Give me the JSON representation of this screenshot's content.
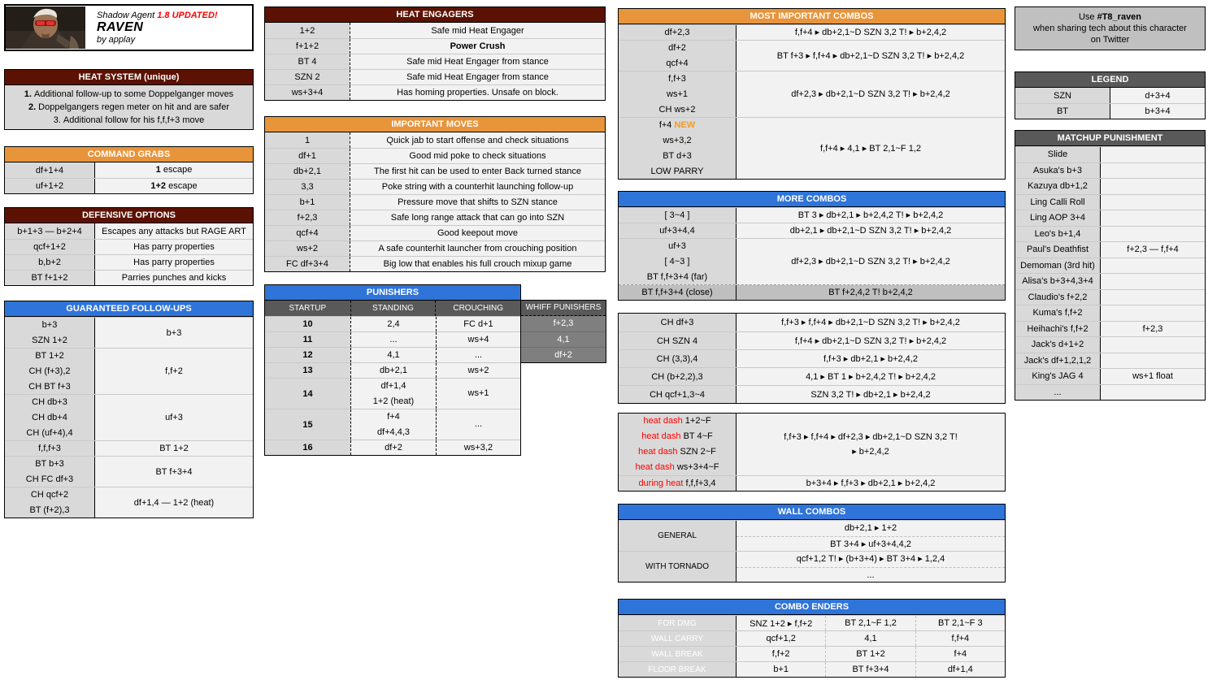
{
  "colors": {
    "maroon": "#5B1202",
    "orange": "#E8943B",
    "blue": "#2E74D9",
    "grey_header": "#595959",
    "label_cell": "#D9D9D9",
    "value_cell": "#F2F2F2",
    "red_text": "#FF0000",
    "new_tag": "#F59B22",
    "dark_row": "#BFBFBF"
  },
  "char_header": {
    "subtitle": "Shadow Agent",
    "version": "1.8 UPDATED!",
    "title": "RAVEN",
    "author": "by applay"
  },
  "heat_system": {
    "title": "HEAT SYSTEM (unique)",
    "lines": [
      {
        "num": "1.",
        "text": "Additional follow-up to some Doppelganger moves",
        "bold": true
      },
      {
        "num": "2.",
        "text": "Doppelgangers regen meter on hit and are safer",
        "bold": true
      },
      {
        "num": "3.",
        "text": "Additional follow for his f,f,f+3 move",
        "bold": false
      }
    ]
  },
  "command_grabs": {
    "title": "COMMAND GRABS",
    "rows": [
      {
        "cmd": "df+1+4",
        "bold": "1",
        "rest": " escape"
      },
      {
        "cmd": "uf+1+2",
        "bold": "1+2",
        "rest": " escape"
      }
    ]
  },
  "defensive_options": {
    "title": "DEFENSIVE OPTIONS",
    "rows": [
      {
        "cmd": "b+1+3 — b+2+4",
        "desc": "Escapes any attacks but RAGE ART"
      },
      {
        "cmd": "qcf+1+2",
        "desc": "Has parry properties"
      },
      {
        "cmd": "b,b+2",
        "desc": "Has parry properties"
      },
      {
        "cmd": "BT f+1+2",
        "desc": "Parries punches and kicks"
      }
    ]
  },
  "guaranteed_followups": {
    "title": "GUARANTEED FOLLOW-UPS",
    "groups": [
      {
        "moves": [
          "b+3",
          "SZN 1+2"
        ],
        "combo": [
          "b+3"
        ]
      },
      {
        "moves": [
          "BT 1+2",
          "CH (f+3),2",
          "CH BT f+3"
        ],
        "combo": [
          "f,f+2"
        ]
      },
      {
        "moves": [
          "CH db+3",
          "CH db+4",
          "CH (uf+4),4"
        ],
        "combo": [
          "uf+3"
        ]
      },
      {
        "moves": [
          "f,f,f+3"
        ],
        "combo": [
          "BT 1+2"
        ]
      },
      {
        "moves": [
          "BT b+3",
          "CH FC df+3"
        ],
        "combo": [
          "BT f+3+4"
        ]
      },
      {
        "moves": [
          "CH qcf+2",
          "BT (f+2),3"
        ],
        "combo": [
          "df+1,4 — 1+2 (heat)"
        ]
      }
    ]
  },
  "heat_engagers": {
    "title": "HEAT ENGAGERS",
    "rows": [
      {
        "cmd": "1+2",
        "desc": "Safe mid Heat Engager"
      },
      {
        "cmd": "f+1+2",
        "desc": "Power Crush",
        "bold": true
      },
      {
        "cmd": "BT 4",
        "desc": "Safe mid Heat Engager from stance"
      },
      {
        "cmd": "SZN 2",
        "desc": "Safe mid Heat Engager from stance"
      },
      {
        "cmd": "ws+3+4",
        "desc": "Has homing properties. Unsafe on block."
      }
    ]
  },
  "important_moves": {
    "title": "IMPORTANT MOVES",
    "rows": [
      {
        "cmd": "1",
        "desc": "Quick jab to start offense and check situations"
      },
      {
        "cmd": "df+1",
        "desc": "Good mid poke to check situations"
      },
      {
        "cmd": "db+2,1",
        "desc": "The first hit can be used to enter Back turned stance"
      },
      {
        "cmd": "3,3",
        "desc": "Poke string with a counterhit launching follow-up"
      },
      {
        "cmd": "b+1",
        "desc": "Pressure move that shifts to SZN stance"
      },
      {
        "cmd": "f+2,3",
        "desc": "Safe long range attack that can go into SZN"
      },
      {
        "cmd": "qcf+4",
        "desc": "Good keepout move"
      },
      {
        "cmd": "ws+2",
        "desc": "A safe counterhit launcher from crouching position"
      },
      {
        "cmd": "FC df+3+4",
        "desc": "Big low that enables his full crouch mixup game"
      }
    ]
  },
  "punishers": {
    "title": "PUNISHERS",
    "headers": [
      "STARTUP",
      "STANDING",
      "CROUCHING"
    ],
    "whiff_title": "WHIFF PUNISHERS",
    "whiff": [
      "f+2,3",
      "4,1",
      "df+2"
    ],
    "rows": [
      {
        "startup": "10",
        "standing": [
          "2,4"
        ],
        "crouching": [
          "FC d+1"
        ]
      },
      {
        "startup": "11",
        "standing": [
          "..."
        ],
        "crouching": [
          "ws+4"
        ]
      },
      {
        "startup": "12",
        "standing": [
          "4,1"
        ],
        "crouching": [
          "..."
        ]
      },
      {
        "startup": "13",
        "standing": [
          "db+2,1"
        ],
        "crouching": [
          "ws+2"
        ]
      },
      {
        "startup": "14",
        "standing": [
          "df+1,4",
          "1+2 (heat)"
        ],
        "crouching": [
          "ws+1"
        ]
      },
      {
        "startup": "15",
        "standing": [
          "f+4",
          "df+4,4,3"
        ],
        "crouching": [
          "..."
        ]
      },
      {
        "startup": "16",
        "standing": [
          "df+2"
        ],
        "crouching": [
          "ws+3,2"
        ]
      }
    ]
  },
  "most_important_combos": {
    "title": "MOST IMPORTANT COMBOS",
    "groups": [
      {
        "moves": [
          "df+2,3"
        ],
        "combo": [
          "f,f+4 ▸ db+2,1~D SZN 3,2 T! ▸ b+2,4,2"
        ]
      },
      {
        "moves": [
          "df+2",
          "qcf+4"
        ],
        "combo": [
          "BT f+3 ▸ f,f+4 ▸ db+2,1~D SZN 3,2 T! ▸ b+2,4,2"
        ]
      },
      {
        "moves": [
          "f,f+3",
          "ws+1",
          "CH ws+2"
        ],
        "combo": [
          "df+2,3 ▸ db+2,1~D SZN 3,2 T! ▸ b+2,4,2"
        ]
      },
      {
        "moves": [
          {
            "t": "f+4 ",
            "tag": "NEW"
          },
          "ws+3,2",
          "BT d+3",
          "LOW PARRY"
        ],
        "combo": [
          "f,f+4 ▸ 4,1 ▸ BT 2,1~F 1,2"
        ]
      }
    ]
  },
  "more_combos": {
    "title": "MORE COMBOS",
    "groups": [
      {
        "moves": [
          "[ 3~4 ]"
        ],
        "combo": [
          "BT 3 ▸ db+2,1 ▸ b+2,4,2 T! ▸ b+2,4,2"
        ]
      },
      {
        "moves": [
          "uf+3+4,4"
        ],
        "combo": [
          "db+2,1 ▸ db+2,1~D SZN 3,2 T! ▸ b+2,4,2"
        ]
      },
      {
        "moves": [
          "uf+3",
          "[ 4~3 ]",
          "BT f,f+3+4 (far)"
        ],
        "combo": [
          "df+2,3 ▸ db+2,1~D SZN 3,2 T! ▸ b+2,4,2"
        ]
      },
      {
        "moves": [
          "BT f,f+3+4 (close)"
        ],
        "combo": [
          "BT f+2,4,2 T! b+2,4,2"
        ],
        "dark": true
      }
    ]
  },
  "ch_combos": {
    "rows": [
      {
        "cmd": "CH df+3",
        "combo": "f,f+3 ▸ f,f+4 ▸ db+2,1~D SZN 3,2 T! ▸ b+2,4,2"
      },
      {
        "cmd": "CH SZN 4",
        "combo": "f,f+4 ▸ db+2,1~D SZN 3,2 T! ▸ b+2,4,2"
      },
      {
        "cmd": "CH (3,3),4",
        "combo": "f,f+3 ▸ db+2,1 ▸ b+2,4,2"
      },
      {
        "cmd": "CH (b+2,2),3",
        "combo": "4,1 ▸ BT 1 ▸ b+2,4,2 T! ▸ b+2,4,2"
      },
      {
        "cmd": "CH qcf+1,3~4",
        "combo": "SZN 3,2 T! ▸ db+2,1 ▸ b+2,4,2"
      }
    ]
  },
  "heat_dash_combos": {
    "groups": [
      {
        "moves": [
          {
            "pre": "heat dash ",
            "t": "1+2~F"
          },
          {
            "pre": "heat dash ",
            "t": "BT 4~F"
          },
          {
            "pre": "heat dash ",
            "t": "SZN 2~F"
          },
          {
            "pre": "heat dash ",
            "t": "ws+3+4~F"
          }
        ],
        "combo": [
          "f,f+3 ▸ f,f+4 ▸ df+2,3 ▸ db+2,1~D SZN 3,2 T!",
          "▸ b+2,4,2"
        ]
      },
      {
        "moves": [
          {
            "pre": "during heat ",
            "t": "f,f,f+3,4"
          }
        ],
        "combo": [
          "b+3+4 ▸ f,f+3 ▸ db+2,1 ▸ b+2,4,2"
        ]
      }
    ]
  },
  "wall_combos": {
    "title": "WALL COMBOS",
    "groups": [
      {
        "label": "GENERAL",
        "lines": [
          "db+2,1 ▸ 1+2",
          "BT 3+4 ▸ uf+3+4,4,2"
        ]
      },
      {
        "label": "WITH TORNADO",
        "lines": [
          "qcf+1,2 T! ▸ (b+3+4) ▸ BT 3+4 ▸ 1,2,4",
          "..."
        ]
      }
    ]
  },
  "combo_enders": {
    "title": "COMBO ENDERS",
    "rows": [
      {
        "label": "FOR DMG",
        "cells": [
          "SNZ 1+2 ▸ f,f+2",
          "BT 2,1~F 1,2",
          "BT 2,1~F 3"
        ]
      },
      {
        "label": "WALL CARRY",
        "cells": [
          "qcf+1,2",
          "4,1",
          "f,f+4"
        ]
      },
      {
        "label": "WALL BREAK",
        "cells": [
          "f,f+2",
          "BT 1+2",
          "f+4"
        ]
      },
      {
        "label": "FLOOR BREAK",
        "cells": [
          "b+1",
          "BT f+3+4",
          "df+1,4"
        ]
      }
    ]
  },
  "twitter_note": {
    "pre": "Use ",
    "hashtag": "#T8_raven",
    "line2": "when sharing tech about this character",
    "line3": "on Twitter"
  },
  "legend": {
    "title": "LEGEND",
    "rows": [
      {
        "k": "SZN",
        "v": "d+3+4"
      },
      {
        "k": "BT",
        "v": "b+3+4"
      }
    ]
  },
  "matchup_punishment": {
    "title": "MATCHUP PUNISHMENT",
    "rows": [
      {
        "k": "Slide",
        "v": ""
      },
      {
        "k": "Asuka's b+3",
        "v": ""
      },
      {
        "k": "Kazuya db+1,2",
        "v": ""
      },
      {
        "k": "Ling Calli Roll",
        "v": ""
      },
      {
        "k": "Ling AOP 3+4",
        "v": ""
      },
      {
        "k": "Leo's b+1,4",
        "v": ""
      },
      {
        "k": "Paul's Deathfist",
        "v": "f+2,3 — f,f+4"
      },
      {
        "k": "Demoman (3rd hit)",
        "v": ""
      },
      {
        "k": "Alisa's b+3+4,3+4",
        "v": ""
      },
      {
        "k": "Claudio's f+2,2",
        "v": ""
      },
      {
        "k": "Kuma's f,f+2",
        "v": ""
      },
      {
        "k": "Heihachi's f,f+2",
        "v": "f+2,3"
      },
      {
        "k": "Jack's d+1+2",
        "v": ""
      },
      {
        "k": "Jack's df+1,2,1,2",
        "v": ""
      },
      {
        "k": "King's JAG 4",
        "v": "ws+1 float"
      },
      {
        "k": "...",
        "v": ""
      }
    ]
  }
}
